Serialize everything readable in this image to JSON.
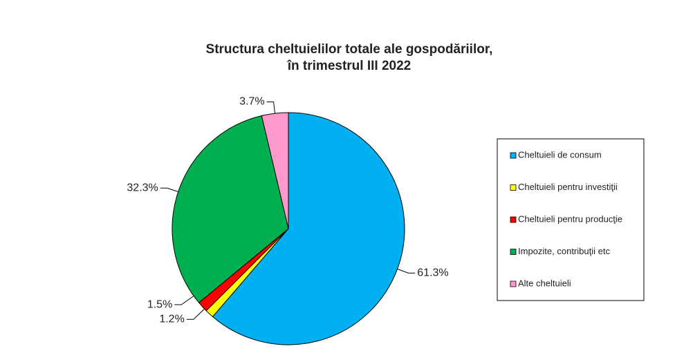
{
  "chart_data": {
    "type": "pie",
    "title": [
      "Structura cheltuielilor totale ale gospodăriilor,",
      "în trimestrul III 2022"
    ],
    "categories": [
      "Cheltuieli de consum",
      "Cheltuieli pentru investiţii",
      "Cheltuieli pentru producţie",
      "Impozite, contribuţii etc",
      "Alte cheltuieli"
    ],
    "values": [
      61.3,
      1.2,
      1.5,
      32.3,
      3.7
    ],
    "value_labels": [
      "61.3%",
      "1.2%",
      "1.5%",
      "32.3%",
      "3.7%"
    ],
    "colors": [
      "#00b0f0",
      "#ffff00",
      "#ff0000",
      "#00b050",
      "#ff99cc"
    ],
    "legend": "right"
  }
}
